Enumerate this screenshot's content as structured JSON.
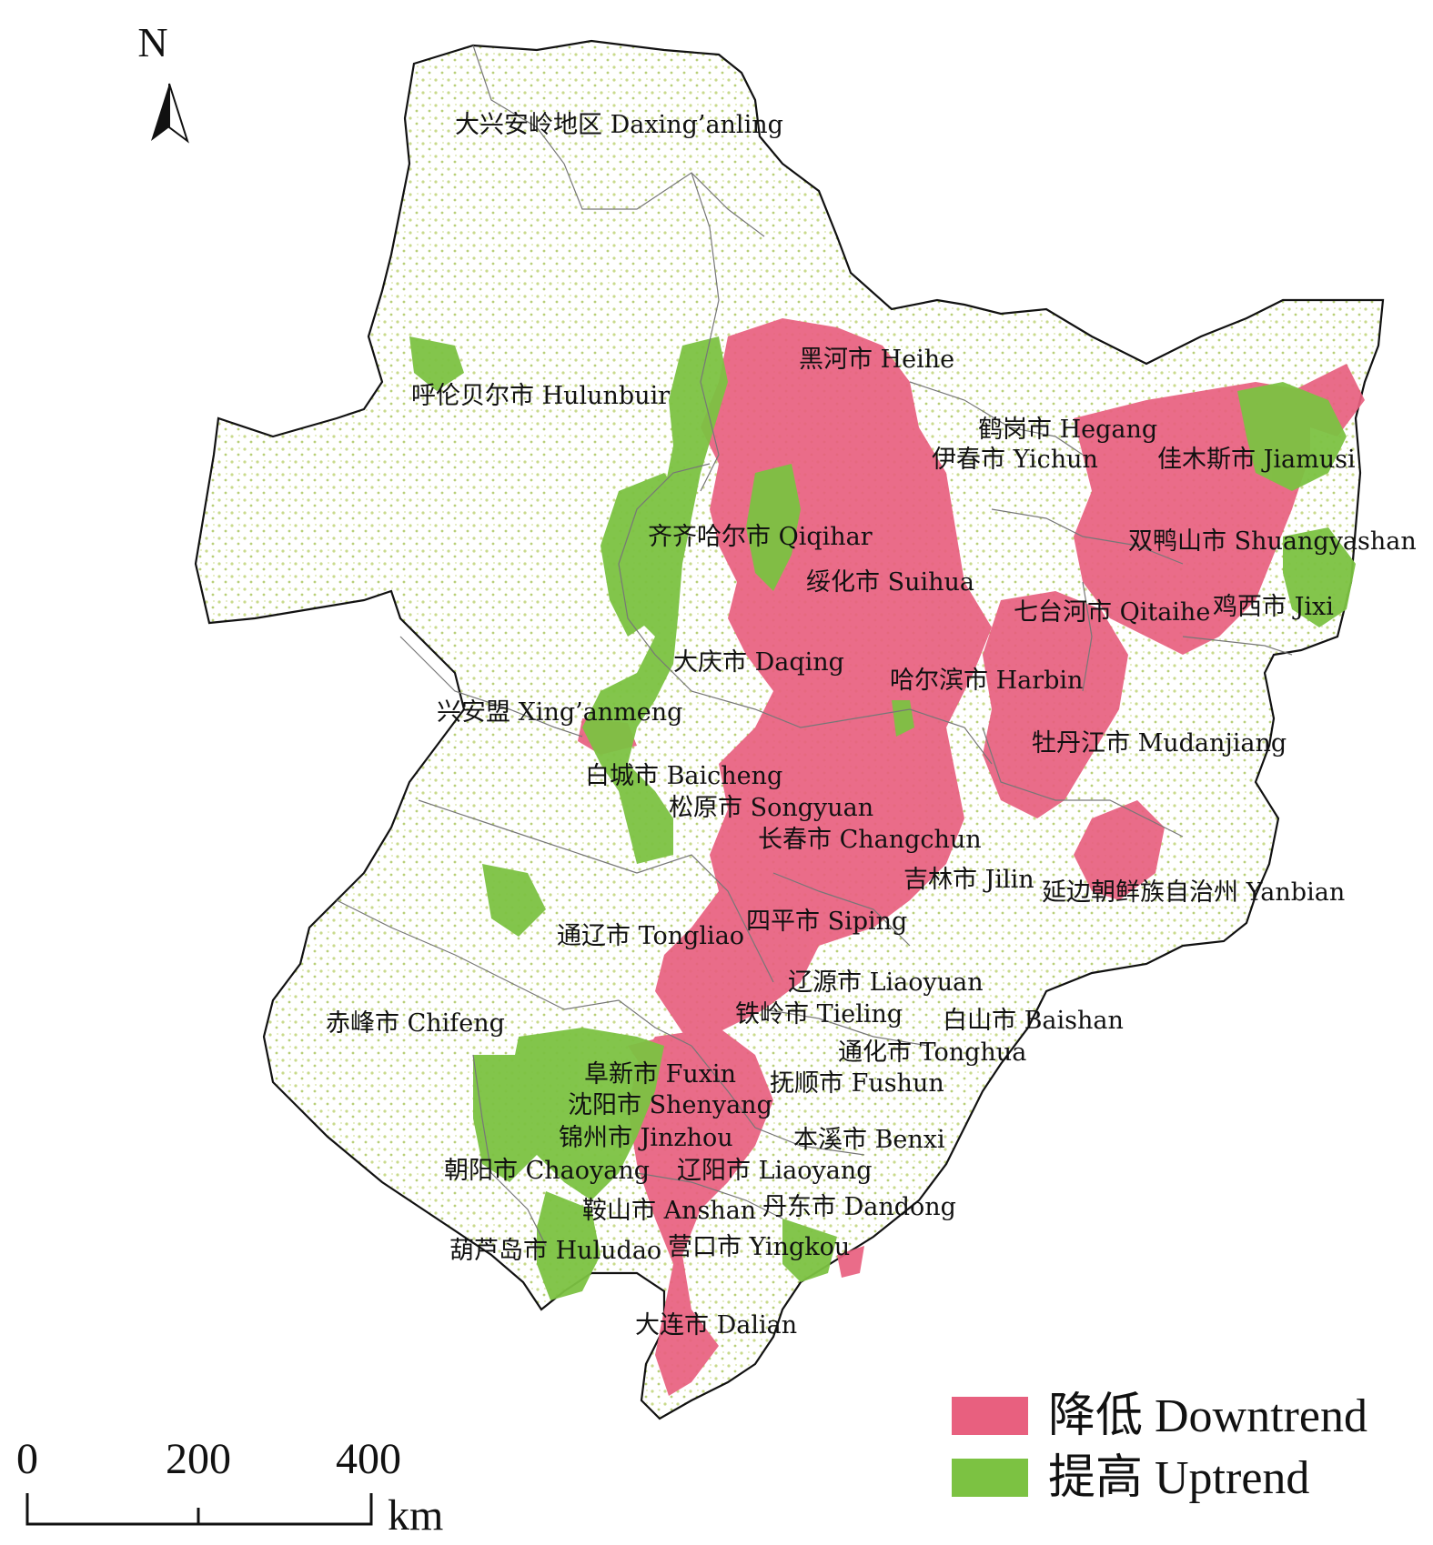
{
  "colors": {
    "downtrend": "#e8607f",
    "uptrend": "#7cc242",
    "light_veg": "#d7e4a4",
    "boundary": "#111111"
  },
  "north": {
    "letter": "N"
  },
  "scale_bar": {
    "ticks": [
      "0",
      "200",
      "400"
    ],
    "unit": "km"
  },
  "legend": [
    {
      "label": "降低 Downtrend",
      "color": "#e8607f"
    },
    {
      "label": "提高 Uptrend",
      "color": "#7cc242"
    }
  ],
  "region_labels": [
    "大兴安岭地区 Daxing’anling",
    "呼伦贝尔市 Hulunbuir",
    "黑河市 Heihe",
    "鹤岗市 Hegang",
    "伊春市 Yichun",
    "佳木斯市 Jiamusi",
    "齐齐哈尔市 Qiqihar",
    "双鸭山市 Shuangyashan",
    "绥化市 Suihua",
    "七台河市 Qitaihe",
    "鸡西市 Jixi",
    "大庆市 Daqing",
    "哈尔滨市 Harbin",
    "兴安盟 Xing’anmeng",
    "牡丹江市 Mudanjiang",
    "白城市 Baicheng",
    "松原市 Songyuan",
    "长春市 Changchun",
    "吉林市 Jilin",
    "延边朝鲜族自治州 Yanbian",
    "四平市 Siping",
    "通辽市 Tongliao",
    "辽源市 Liaoyuan",
    "铁岭市 Tieling",
    "白山市 Baishan",
    "赤峰市 Chifeng",
    "通化市 Tonghua",
    "阜新市 Fuxin",
    "抚顺市 Fushun",
    "沈阳市 Shenyang",
    "本溪市 Benxi",
    "锦州市 Jinzhou",
    "朝阳市 Chaoyang",
    "辽阳市 Liaoyang",
    "鞍山市 Anshan",
    "丹东市 Dandong",
    "葫芦岛市 Huludao",
    "营口市 Yingkou",
    "大连市 Dalian"
  ]
}
